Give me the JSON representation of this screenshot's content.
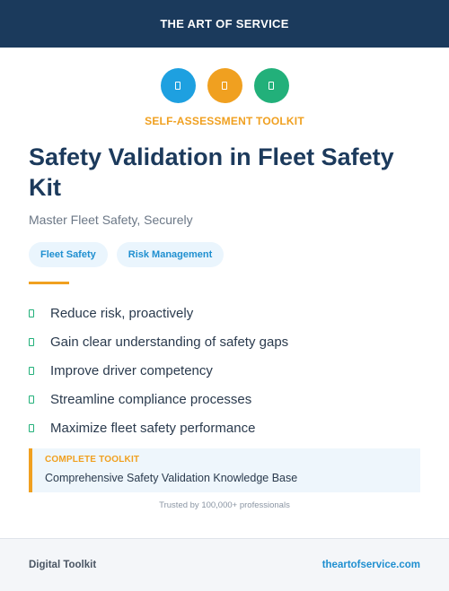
{
  "header": {
    "brand": "THE ART OF SERVICE"
  },
  "icons": [
    {
      "name": "tool-icon",
      "color": "#1ea0e0"
    },
    {
      "name": "document-icon",
      "color": "#f0a020"
    },
    {
      "name": "checklist-icon",
      "color": "#22b07a"
    }
  ],
  "hero": {
    "kicker": "SELF-ASSESSMENT TOOLKIT",
    "title": "Safety Validation in Fleet Safety Kit",
    "subtitle": "Master Fleet Safety, Securely"
  },
  "tags": [
    "Fleet Safety",
    "Risk Management"
  ],
  "benefits": [
    "Reduce risk, proactively",
    "Gain clear understanding of safety gaps",
    "Improve driver competency",
    "Streamline compliance processes",
    "Maximize fleet safety performance"
  ],
  "callout": {
    "kicker": "COMPLETE TOOLKIT",
    "text": "Comprehensive Safety Validation Knowledge Base"
  },
  "trusted": "Trusted by 100,000+ professionals",
  "footer": {
    "left": "Digital Toolkit",
    "right": "theartofservice.com"
  },
  "colors": {
    "navy": "#1b3a5c",
    "orange": "#f0a020",
    "blue": "#1ea0e0",
    "green": "#22b07a"
  }
}
